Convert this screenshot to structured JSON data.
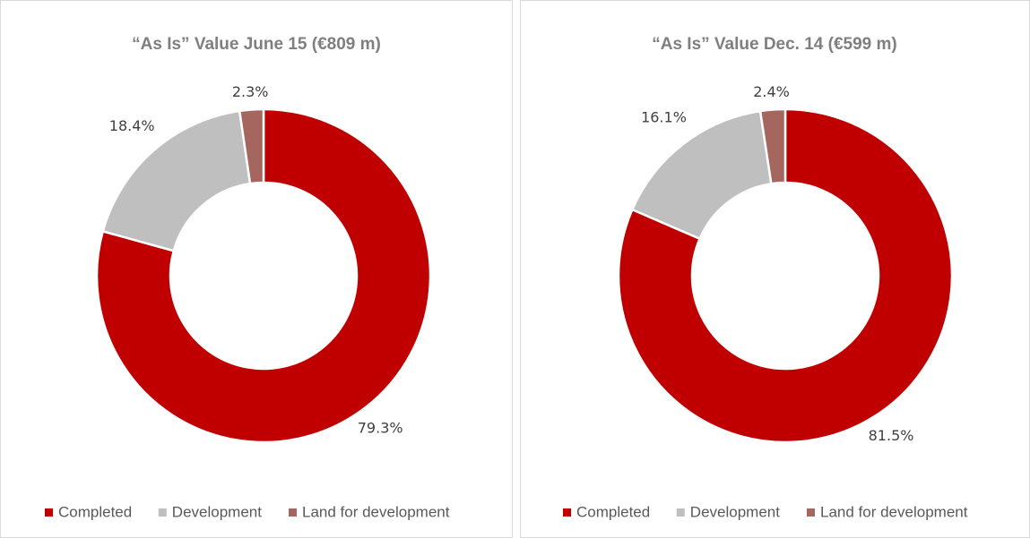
{
  "chart_data": [
    {
      "type": "donut",
      "title": "“As Is” Value June 15   (€809 m)",
      "categories": [
        "Completed",
        "Development",
        "Land for development"
      ],
      "values": [
        79.3,
        18.4,
        2.3
      ],
      "value_labels": [
        "79.3%",
        "18.4%",
        "2.3%"
      ],
      "colors": [
        "#c00000",
        "#bfbfbf",
        "#a5665f"
      ],
      "legend": "bottom"
    },
    {
      "type": "donut",
      "title": "“As Is” Value  Dec. 14 (€599 m)",
      "categories": [
        "Completed",
        "Development",
        "Land for development"
      ],
      "values": [
        81.5,
        16.1,
        2.4
      ],
      "value_labels": [
        "81.5%",
        "16.1%",
        "2.4%"
      ],
      "colors": [
        "#c00000",
        "#bfbfbf",
        "#a5665f"
      ],
      "legend": "bottom"
    }
  ]
}
